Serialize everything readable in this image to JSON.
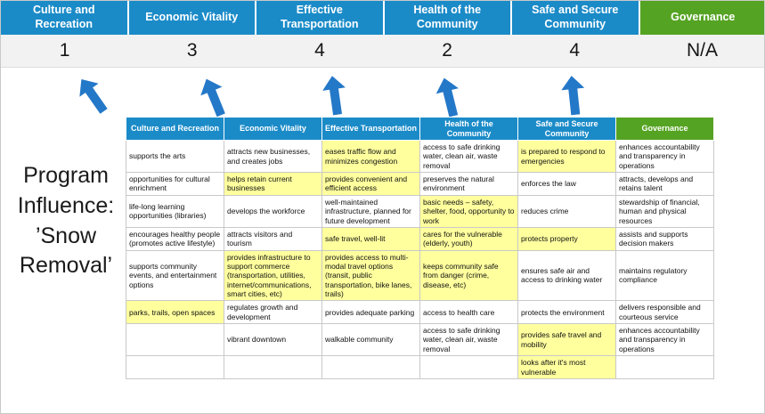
{
  "colors": {
    "pillar_blue": "#1b8bc8",
    "pillar_green": "#55a322",
    "highlight_yellow": "#ffff9e",
    "arrow_blue": "#2478c8",
    "score_band_bg": "#f2f2f2"
  },
  "pillars": [
    {
      "label": "Culture and Recreation",
      "score": "1"
    },
    {
      "label": "Economic Vitality",
      "score": "3"
    },
    {
      "label": "Effective Transportation",
      "score": "4"
    },
    {
      "label": "Health of the Community",
      "score": "2"
    },
    {
      "label": "Safe and Secure Community",
      "score": "4"
    },
    {
      "label": "Governance",
      "score": "N/A"
    }
  ],
  "program_label": "Program\nInfluence:\n’Snow\nRemoval’",
  "table": {
    "headers": [
      "Culture and Recreation",
      "Economic Vitality",
      "Effective Transportation",
      "Health of the Community",
      "Safe and Secure Community",
      "Governance"
    ],
    "rows": [
      [
        {
          "t": "supports the arts",
          "h": false
        },
        {
          "t": "attracts new businesses, and creates jobs",
          "h": false
        },
        {
          "t": "eases traffic flow and minimizes congestion",
          "h": true
        },
        {
          "t": "access to safe drinking water, clean air, waste removal",
          "h": false
        },
        {
          "t": "is prepared to respond to emergencies",
          "h": true
        },
        {
          "t": "enhances accountability and transparency in operations",
          "h": false
        }
      ],
      [
        {
          "t": "opportunities for cultural enrichment",
          "h": false
        },
        {
          "t": "helps retain current businesses",
          "h": true
        },
        {
          "t": "provides convenient and efficient access",
          "h": true
        },
        {
          "t": "preserves the natural environment",
          "h": false
        },
        {
          "t": "enforces the law",
          "h": false
        },
        {
          "t": "attracts, develops and retains talent",
          "h": false
        }
      ],
      [
        {
          "t": "life-long learning opportunities (libraries)",
          "h": false
        },
        {
          "t": "develops the workforce",
          "h": false
        },
        {
          "t": "well-maintained infrastructure, planned for future development",
          "h": false
        },
        {
          "t": "basic needs – safety, shelter, food, opportunity to work",
          "h": true
        },
        {
          "t": "reduces crime",
          "h": false
        },
        {
          "t": "stewardship of financial, human and physical resources",
          "h": false
        }
      ],
      [
        {
          "t": "encourages healthy people (promotes active lifestyle)",
          "h": false
        },
        {
          "t": "attracts visitors and tourism",
          "h": false
        },
        {
          "t": "safe travel, well-lit",
          "h": true
        },
        {
          "t": "cares for the vulnerable (elderly, youth)",
          "h": true
        },
        {
          "t": "protects property",
          "h": true
        },
        {
          "t": "assists and supports decision makers",
          "h": false
        }
      ],
      [
        {
          "t": "supports community events, and entertainment options",
          "h": false
        },
        {
          "t": "provides infrastructure to support commerce (transportation, utilities, internet/communications, smart cities, etc)",
          "h": true
        },
        {
          "t": "provides access to multi-modal travel options (transit, public transportation, bike lanes, trails)",
          "h": true
        },
        {
          "t": "keeps community safe from danger (crime, disease, etc)",
          "h": true
        },
        {
          "t": "ensures safe air and access to drinking water",
          "h": false
        },
        {
          "t": "maintains regulatory compliance",
          "h": false
        }
      ],
      [
        {
          "t": "parks, trails, open spaces",
          "h": true
        },
        {
          "t": "regulates growth and development",
          "h": false
        },
        {
          "t": "provides adequate parking",
          "h": false
        },
        {
          "t": "access to health care",
          "h": false
        },
        {
          "t": "protects the environment",
          "h": false
        },
        {
          "t": "delivers responsible and courteous service",
          "h": false
        }
      ],
      [
        {
          "t": "",
          "h": false
        },
        {
          "t": "vibrant downtown",
          "h": false
        },
        {
          "t": "walkable community",
          "h": false
        },
        {
          "t": "access to safe drinking water, clean air, waste removal",
          "h": false
        },
        {
          "t": "provides safe travel and mobility",
          "h": true
        },
        {
          "t": "enhances accountability and transparency in operations",
          "h": false
        }
      ],
      [
        {
          "t": "",
          "h": false
        },
        {
          "t": "",
          "h": false
        },
        {
          "t": "",
          "h": false
        },
        {
          "t": "",
          "h": false
        },
        {
          "t": "looks after it's most vulnerable",
          "h": true
        },
        {
          "t": "",
          "h": false
        }
      ]
    ]
  }
}
